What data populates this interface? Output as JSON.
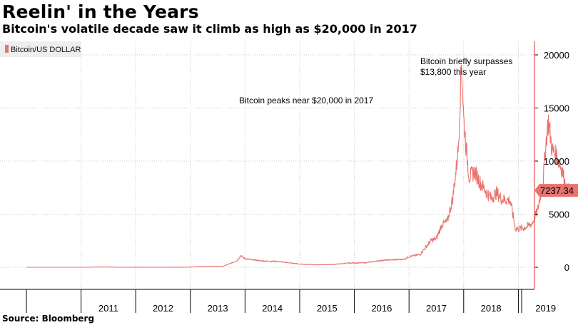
{
  "header": {
    "title": "Reelin' in the Years",
    "subtitle": "Bitcoin's volatile decade saw it climb as high as $20,000 in 2017"
  },
  "footer": {
    "source": "Source: Bloomberg"
  },
  "colors": {
    "series": "#e8736e",
    "grid": "#c8c8c8",
    "legend_bg": "#eeeeee"
  },
  "chart_data": {
    "type": "line",
    "title": "",
    "xlabel": "",
    "ylabel": "",
    "ylim": [
      -2000,
      21500
    ],
    "xlim": [
      2010.0,
      2019.95
    ],
    "yticks": [
      0,
      5000,
      10000,
      15000,
      20000
    ],
    "ytick_labels": [
      "0",
      "5000",
      "10000",
      "15000",
      "20000"
    ],
    "xtick_labels": [
      "2011",
      "2012",
      "2013",
      "2014",
      "2015",
      "2016",
      "2017",
      "2018",
      "2019"
    ],
    "grid": true,
    "legend": {
      "position": "top-left",
      "entries": [
        "Bitcoin/US DOLLAR"
      ]
    },
    "last_value_label": "7237.34",
    "annotations": [
      {
        "text": "Bitcoin peaks near $20,000 in 2017"
      },
      {
        "text": "Bitcoin briefly surpasses"
      },
      {
        "text": "$13,800 this year"
      }
    ],
    "series": [
      {
        "name": "Bitcoin/US DOLLAR",
        "x": [
          2010.0,
          2010.5,
          2011.0,
          2011.45,
          2011.7,
          2012.0,
          2012.5,
          2013.0,
          2013.3,
          2013.6,
          2013.85,
          2013.92,
          2014.0,
          2014.3,
          2014.6,
          2015.0,
          2015.3,
          2015.6,
          2015.9,
          2016.2,
          2016.5,
          2016.9,
          2017.0,
          2017.2,
          2017.4,
          2017.5,
          2017.6,
          2017.7,
          2017.8,
          2017.9,
          2017.96,
          2018.0,
          2018.05,
          2018.1,
          2018.2,
          2018.3,
          2018.4,
          2018.5,
          2018.6,
          2018.7,
          2018.85,
          2018.95,
          2019.1,
          2019.25,
          2019.35,
          2019.45,
          2019.5,
          2019.55,
          2019.62,
          2019.7,
          2019.8,
          2019.88,
          2019.95
        ],
        "y": [
          0,
          0,
          0,
          30,
          5,
          5,
          7,
          15,
          100,
          100,
          600,
          1100,
          800,
          600,
          550,
          300,
          230,
          260,
          400,
          420,
          650,
          750,
          1000,
          1200,
          2500,
          2700,
          4000,
          4300,
          6500,
          11000,
          19500,
          14000,
          11000,
          8500,
          9000,
          8000,
          7200,
          6500,
          7000,
          6400,
          6300,
          3600,
          3700,
          4100,
          5300,
          8000,
          11500,
          13800,
          11000,
          10500,
          9200,
          7300,
          7237
        ]
      }
    ]
  }
}
